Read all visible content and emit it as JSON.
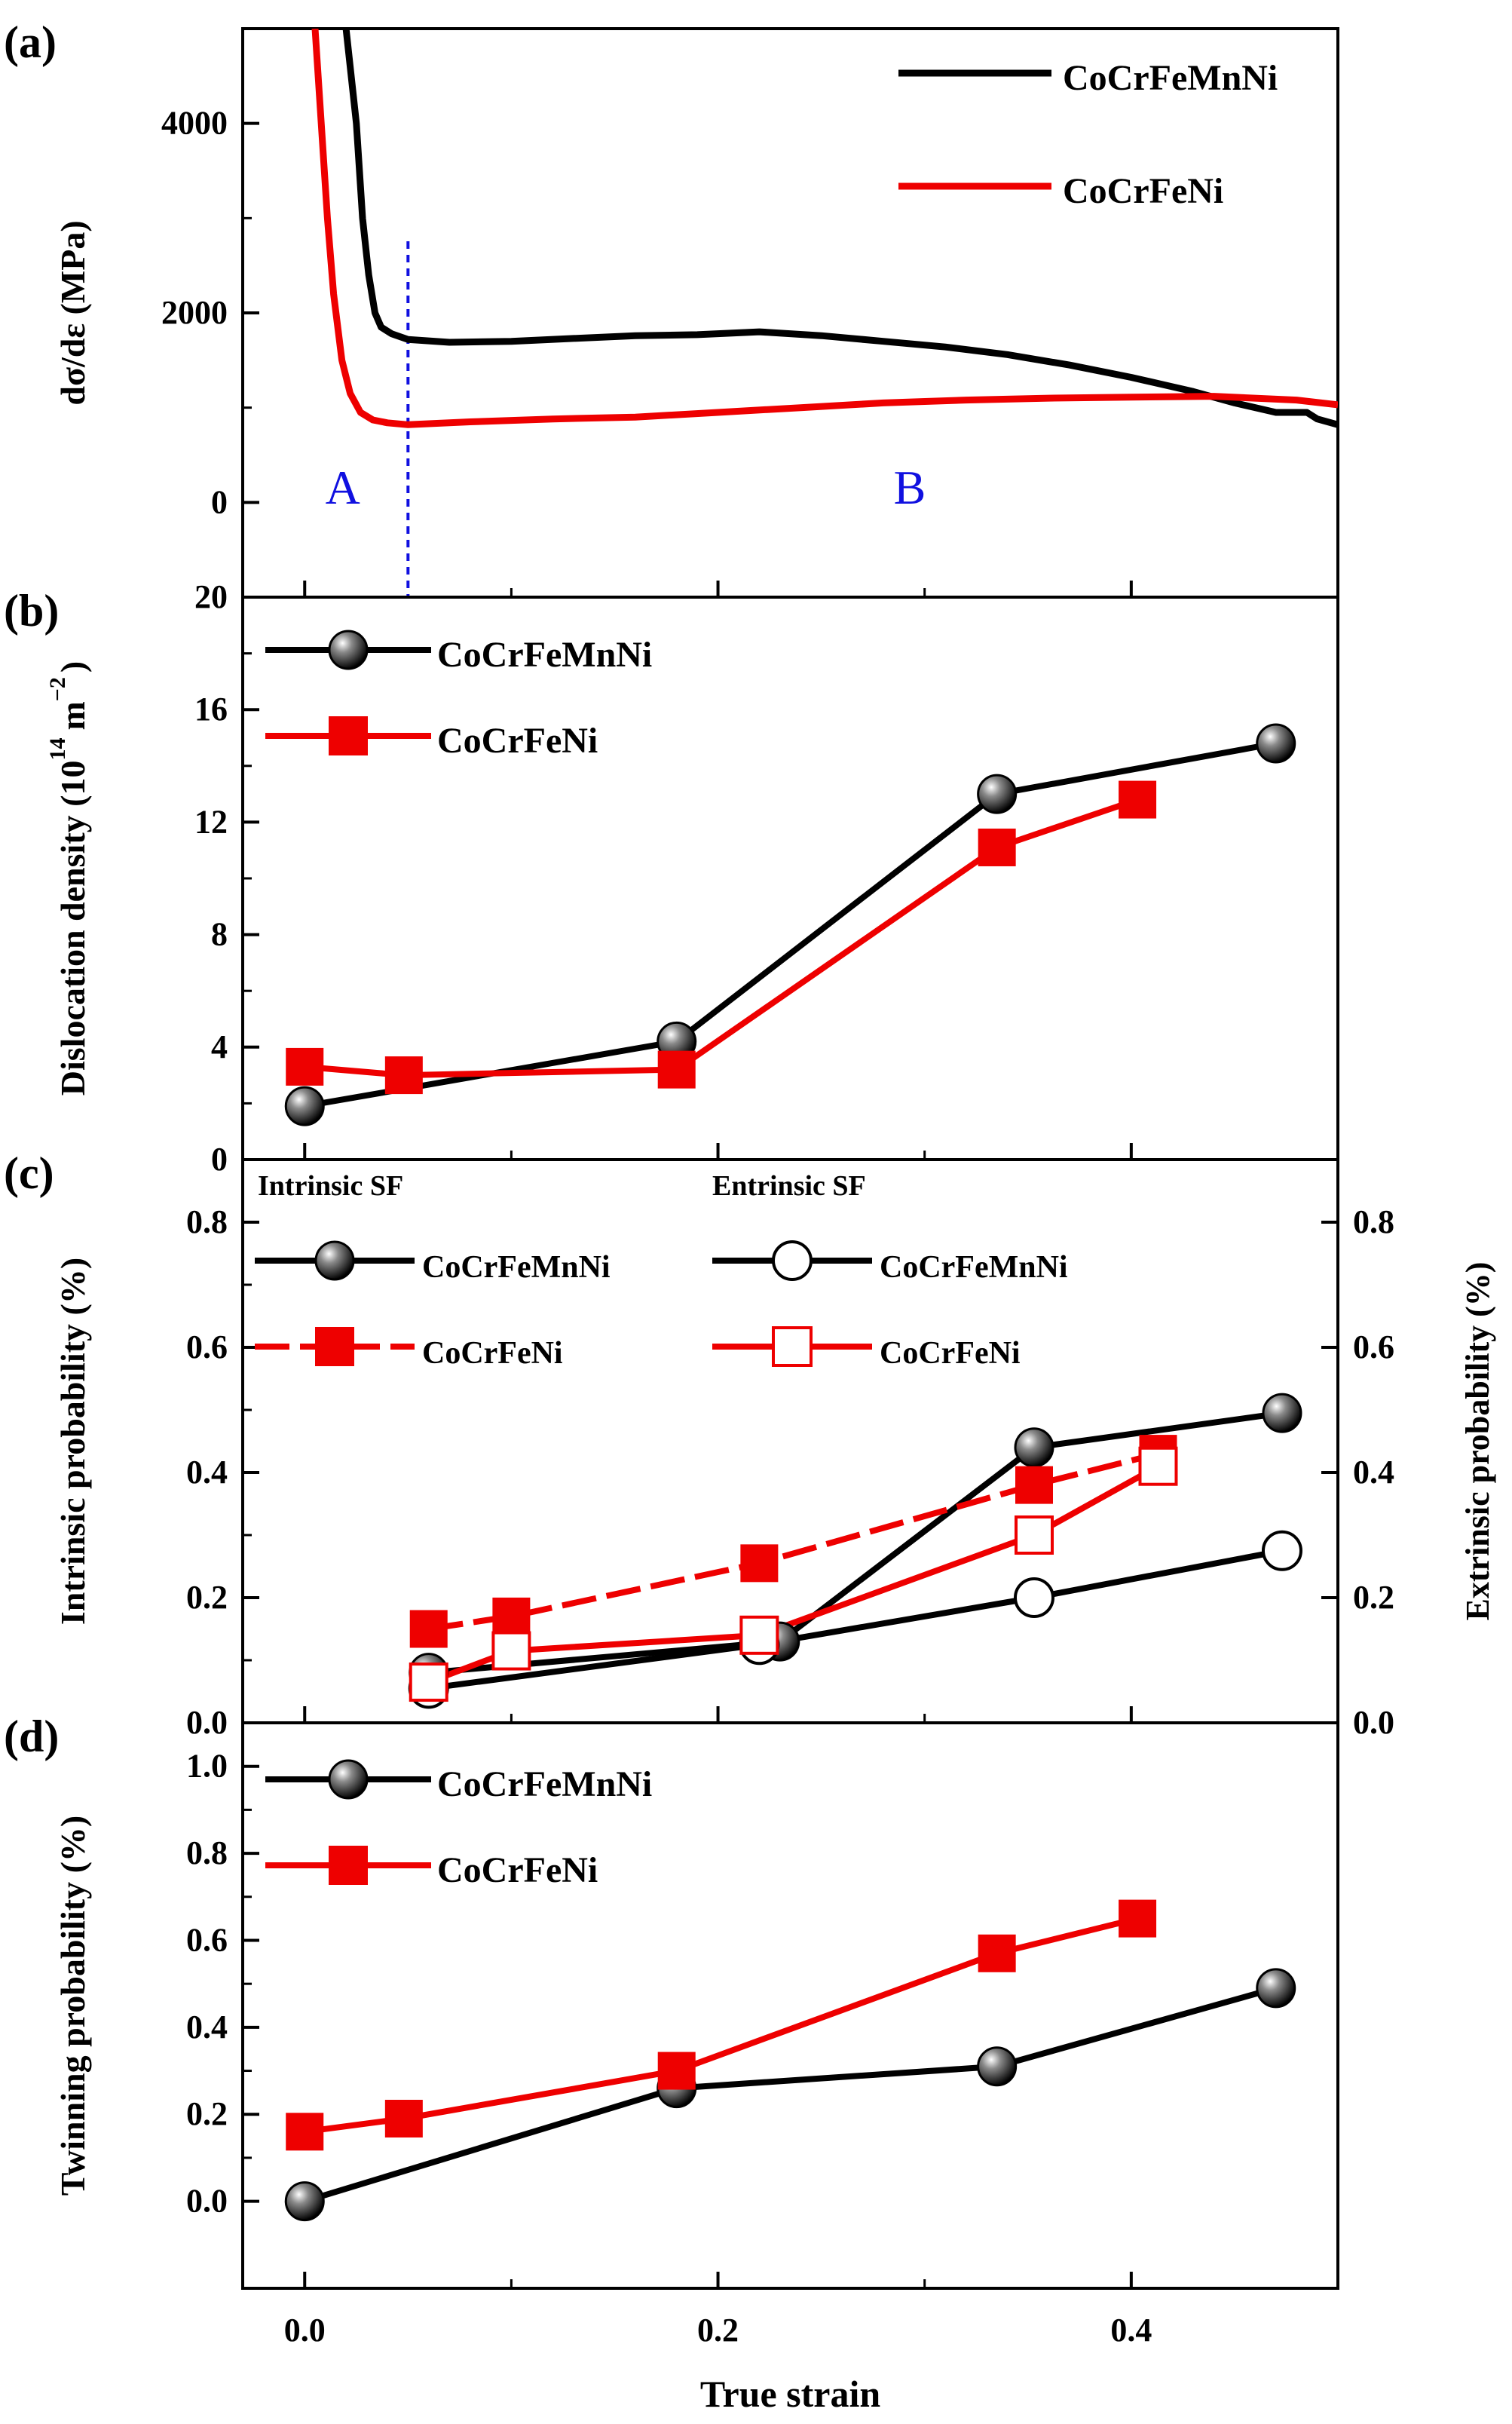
{
  "figure": {
    "x_axis_label": "True strain",
    "x_ticks": [
      0.0,
      0.2,
      0.4
    ],
    "x_tick_labels": [
      "0.0",
      "0.2",
      "0.4"
    ],
    "xlim": [
      -0.03,
      0.5
    ]
  },
  "colors": {
    "black_series": "#000000",
    "red_series": "#ee0000",
    "divider": "#1010e0",
    "region_text": "#1010e0"
  },
  "chart_data": [
    {
      "panel": "(a)",
      "type": "line",
      "ylabel": "dσ/dε (MPa)",
      "ylim": [
        -1000,
        5000
      ],
      "y_ticks": [
        0,
        2000,
        4000
      ],
      "y_tick_labels": [
        "0",
        "2000",
        "4000"
      ],
      "legend_placement": "top-right",
      "annotations": [
        {
          "text": "A",
          "x": 0.01,
          "y": 0
        },
        {
          "text": "B",
          "x": 0.285,
          "y": 0
        }
      ],
      "divider_x": 0.05,
      "series": [
        {
          "name": "CoCrFeMnNi",
          "color": "#000000",
          "x": [
            0.02,
            0.025,
            0.028,
            0.031,
            0.034,
            0.037,
            0.042,
            0.05,
            0.07,
            0.1,
            0.13,
            0.16,
            0.19,
            0.22,
            0.25,
            0.28,
            0.31,
            0.34,
            0.37,
            0.4,
            0.43,
            0.45,
            0.47,
            0.485,
            0.49,
            0.5
          ],
          "y": [
            5000,
            4000,
            3000,
            2400,
            2000,
            1850,
            1780,
            1720,
            1690,
            1700,
            1730,
            1760,
            1770,
            1800,
            1760,
            1700,
            1640,
            1560,
            1450,
            1320,
            1170,
            1050,
            950,
            950,
            880,
            820
          ]
        },
        {
          "name": "CoCrFeNi",
          "color": "#ee0000",
          "x": [
            0.005,
            0.008,
            0.011,
            0.014,
            0.018,
            0.022,
            0.027,
            0.033,
            0.04,
            0.05,
            0.08,
            0.12,
            0.16,
            0.2,
            0.24,
            0.28,
            0.32,
            0.36,
            0.4,
            0.44,
            0.48,
            0.5
          ],
          "y": [
            5000,
            4000,
            3000,
            2200,
            1500,
            1150,
            950,
            870,
            840,
            820,
            850,
            880,
            900,
            950,
            1000,
            1050,
            1080,
            1100,
            1110,
            1120,
            1080,
            1030
          ]
        }
      ]
    },
    {
      "panel": "(b)",
      "type": "line",
      "ylabel": "Dislocation density (10",
      "ylabel_exponent_1": "14",
      "ylabel_mid": "m",
      "ylabel_exponent_2": "−2",
      "ylabel_end": ")",
      "ylim": [
        0,
        20
      ],
      "y_ticks": [
        0,
        4,
        8,
        12,
        16,
        20
      ],
      "y_tick_labels": [
        "0",
        "4",
        "8",
        "12",
        "16",
        "20"
      ],
      "legend_placement": "top-left",
      "series": [
        {
          "name": "CoCrFeMnNi",
          "marker": "sphere",
          "color": "#000000",
          "x": [
            0.0,
            0.18,
            0.335,
            0.47
          ],
          "y": [
            1.9,
            4.2,
            13.0,
            14.8
          ]
        },
        {
          "name": "CoCrFeNi",
          "marker": "filled-square",
          "color": "#ee0000",
          "x": [
            0.0,
            0.048,
            0.18,
            0.335,
            0.403
          ],
          "y": [
            3.3,
            3.0,
            3.2,
            11.1,
            12.8
          ]
        }
      ]
    },
    {
      "panel": "(c)",
      "type": "line",
      "ylabel": "Intrinsic probability (%)",
      "y2label": "Extrinsic probability (%)",
      "ylim": [
        0,
        0.9
      ],
      "y_ticks": [
        0.0,
        0.2,
        0.4,
        0.6,
        0.8
      ],
      "y_tick_labels": [
        "0.0",
        "0.2",
        "0.4",
        "0.6",
        "0.8"
      ],
      "group_label_left": "Intrinsic SF",
      "group_label_right": "Entrinsic SF",
      "legend_placement": "top",
      "series": [
        {
          "name": "CoCrFeMnNi",
          "group": "intrinsic",
          "marker": "sphere",
          "color": "#000000",
          "dash": false,
          "x": [
            0.06,
            0.23,
            0.353,
            0.473
          ],
          "y": [
            0.08,
            0.13,
            0.44,
            0.495
          ]
        },
        {
          "name": "CoCrFeNi",
          "group": "intrinsic",
          "marker": "filled-square",
          "color": "#ee0000",
          "dash": true,
          "x": [
            0.06,
            0.1,
            0.22,
            0.353,
            0.413
          ],
          "y": [
            0.15,
            0.17,
            0.255,
            0.38,
            0.43
          ]
        },
        {
          "name": "CoCrFeMnNi",
          "group": "extrinsic",
          "marker": "open-circle",
          "color": "#000000",
          "dash": false,
          "x": [
            0.06,
            0.22,
            0.353,
            0.473
          ],
          "y": [
            0.055,
            0.125,
            0.2,
            0.275
          ]
        },
        {
          "name": "CoCrFeNi",
          "group": "extrinsic",
          "marker": "open-square",
          "color": "#ee0000",
          "dash": false,
          "x": [
            0.06,
            0.1,
            0.22,
            0.353,
            0.413
          ],
          "y": [
            0.065,
            0.115,
            0.14,
            0.3,
            0.41
          ]
        }
      ]
    },
    {
      "panel": "(d)",
      "type": "line",
      "ylabel": "Twinning probability (%)",
      "ylim": [
        -0.2,
        1.1
      ],
      "y_ticks": [
        0.0,
        0.2,
        0.4,
        0.6,
        0.8,
        1.0
      ],
      "y_tick_labels": [
        "0.0",
        "0.2",
        "0.4",
        "0.6",
        "0.8",
        "1.0"
      ],
      "legend_placement": "top-left",
      "series": [
        {
          "name": "CoCrFeMnNi",
          "marker": "sphere",
          "color": "#000000",
          "x": [
            0.0,
            0.18,
            0.335,
            0.47
          ],
          "y": [
            0.0,
            0.26,
            0.31,
            0.49
          ]
        },
        {
          "name": "CoCrFeNi",
          "marker": "filled-square",
          "color": "#ee0000",
          "x": [
            0.0,
            0.048,
            0.18,
            0.335,
            0.403
          ],
          "y": [
            0.16,
            0.19,
            0.3,
            0.57,
            0.65
          ]
        }
      ]
    }
  ]
}
